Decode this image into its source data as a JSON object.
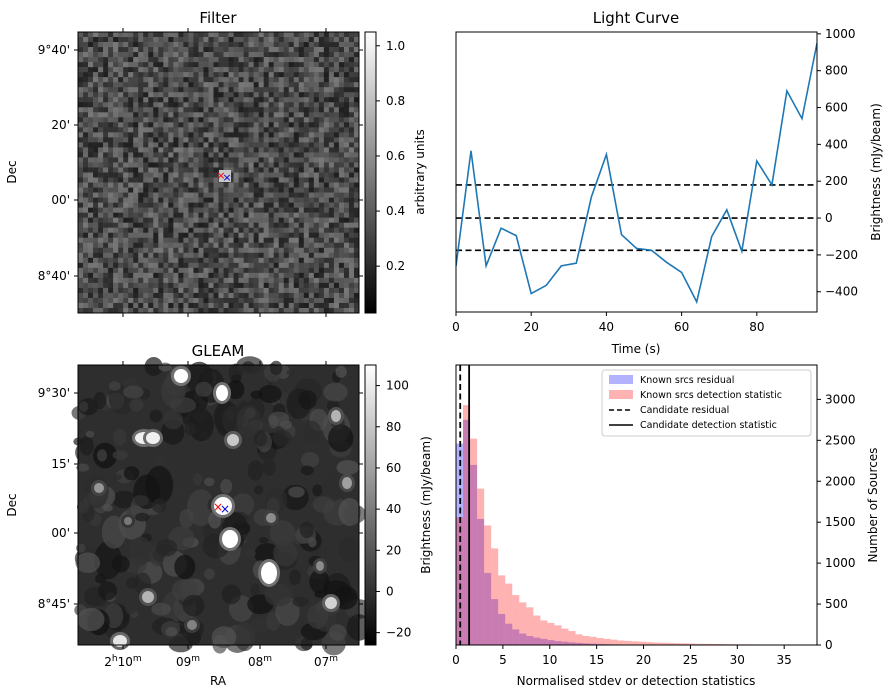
{
  "chart_data": [
    {
      "type": "heatmap",
      "title": "Filter",
      "xlabel": "",
      "ylabel": "Dec",
      "y_ticks": [
        "9°40'",
        "20'",
        "00'",
        "8°40'"
      ],
      "colorbar": {
        "label": "arbitrary units",
        "ticks": [
          "1.0",
          "0.8",
          "0.6",
          "0.4",
          "0.2"
        ],
        "range": [
          0.03,
          1.05
        ]
      },
      "markers": [
        {
          "symbol": "×",
          "color": "#ff0000"
        },
        {
          "symbol": "×",
          "color": "#0000cc"
        }
      ]
    },
    {
      "type": "line",
      "title": "Light Curve",
      "xlabel": "Time (s)",
      "ylabel": "Brightness (mJy/beam)",
      "xlim": [
        0,
        96
      ],
      "ylim": [
        -510,
        1010
      ],
      "x_ticks": [
        "0",
        "20",
        "40",
        "60",
        "80"
      ],
      "y_ticks": [
        "1000",
        "800",
        "600",
        "400",
        "200",
        "0",
        "−200",
        "−400"
      ],
      "series": [
        {
          "color": "#1f77b4",
          "x": [
            0,
            4,
            8,
            12,
            16,
            20,
            24,
            28,
            32,
            36,
            40,
            44,
            48,
            52,
            56,
            60,
            64,
            68,
            72,
            76,
            80,
            84,
            88,
            92,
            96
          ],
          "y": [
            -260,
            365,
            -260,
            -55,
            -95,
            -410,
            -365,
            -260,
            -245,
            115,
            345,
            -90,
            -165,
            -175,
            -240,
            -295,
            -455,
            -100,
            45,
            -180,
            310,
            180,
            690,
            540,
            950
          ]
        }
      ],
      "hlines": [
        {
          "y": 180,
          "style": "dashed",
          "color": "#000000"
        },
        {
          "y": 0,
          "style": "dashed",
          "color": "#000000"
        },
        {
          "y": -175,
          "style": "dashed",
          "color": "#000000"
        }
      ]
    },
    {
      "type": "heatmap",
      "title": "GLEAM",
      "xlabel": "RA",
      "ylabel": "Dec",
      "x_ticks": [
        "2h10m",
        "09m",
        "08m",
        "07m"
      ],
      "y_ticks": [
        "9°30'",
        "15'",
        "00'",
        "8°45'"
      ],
      "colorbar": {
        "label": "Brightness (mJy/beam)",
        "ticks": [
          "100",
          "80",
          "60",
          "40",
          "20",
          "0",
          "−20"
        ],
        "range": [
          -26,
          110
        ]
      },
      "markers": [
        {
          "symbol": "×",
          "color": "#ff0000"
        },
        {
          "symbol": "×",
          "color": "#0000cc"
        }
      ]
    },
    {
      "type": "bar",
      "xlabel": "Normalised stdev or detection statistics",
      "ylabel": "Number of Sources",
      "xlim": [
        0,
        38.5
      ],
      "ylim": [
        0,
        3420
      ],
      "x_ticks": [
        "0",
        "5",
        "10",
        "15",
        "20",
        "25",
        "30",
        "35"
      ],
      "y_ticks": [
        "3000",
        "2500",
        "2000",
        "1500",
        "1000",
        "500",
        "0"
      ],
      "bin_width": 0.75,
      "series": [
        {
          "name": "Known srcs residual",
          "color": "#0000ff",
          "alpha": 0.3,
          "bin_start": 0,
          "values": [
            2460,
            2750,
            2200,
            1540,
            880,
            560,
            380,
            260,
            190,
            140,
            110,
            90,
            75,
            60,
            48,
            40,
            32,
            26,
            20,
            16,
            13,
            10,
            8,
            6,
            5,
            4,
            3,
            2,
            2,
            1
          ]
        },
        {
          "name": "Known srcs detection statistic",
          "color": "#ff0000",
          "alpha": 0.3,
          "bin_start": 0,
          "values": [
            1560,
            2930,
            2520,
            1910,
            1460,
            1180,
            850,
            750,
            610,
            520,
            460,
            360,
            300,
            270,
            240,
            200,
            170,
            130,
            110,
            100,
            85,
            75,
            65,
            55,
            50,
            45,
            40,
            35,
            30,
            28,
            25,
            22,
            20,
            18,
            15,
            14,
            13,
            12,
            10,
            9,
            8,
            8,
            7,
            6,
            6,
            5,
            5,
            4,
            4,
            3
          ]
        }
      ],
      "vlines": [
        {
          "name": "Candidate residual",
          "x": 0.45,
          "style": "dashed",
          "color": "#000000"
        },
        {
          "name": "Candidate detection statistic",
          "x": 1.4,
          "style": "solid",
          "color": "#000000"
        }
      ],
      "legend": {
        "position": "top-right",
        "entries": [
          "Known srcs residual",
          "Known srcs detection statistic",
          "Candidate residual",
          "Candidate detection statistic"
        ]
      }
    }
  ]
}
